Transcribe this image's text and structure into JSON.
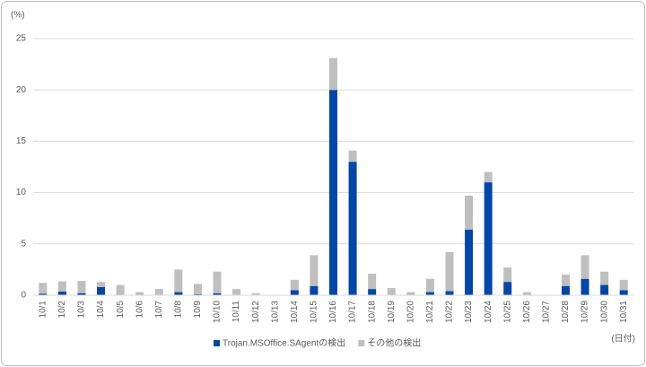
{
  "chart_data": {
    "type": "stacked-bar",
    "y_label": "(%)",
    "x_label": "(日付)",
    "categories": [
      "10/1",
      "10/2",
      "10/3",
      "10/4",
      "10/5",
      "10/6",
      "10/7",
      "10/8",
      "10/9",
      "10/10",
      "10/11",
      "10/12",
      "10/13",
      "10/14",
      "10/15",
      "10/16",
      "10/17",
      "10/18",
      "10/19",
      "10/20",
      "10/21",
      "10/22",
      "10/23",
      "10/24",
      "10/25",
      "10/26",
      "10/27",
      "10/28",
      "10/29",
      "10/30",
      "10/31"
    ],
    "series": [
      {
        "name": "Trojan.MSOffice.SAgentの検出",
        "color": "#0047ab",
        "values": [
          0.15,
          0.35,
          0.2,
          0.8,
          0,
          0,
          0,
          0.3,
          0.1,
          0.2,
          0,
          0,
          0,
          0.5,
          0.9,
          20,
          13,
          0.6,
          0,
          0,
          0.3,
          0.4,
          6.4,
          11,
          1.3,
          0,
          0,
          0.9,
          1.6,
          1.0,
          0.5
        ]
      },
      {
        "name": "その他の検出",
        "color": "#bfbfbf",
        "values": [
          1.05,
          1.0,
          1.2,
          0.5,
          1.0,
          0.3,
          0.6,
          2.2,
          1.0,
          2.1,
          0.6,
          0.2,
          0.05,
          1.0,
          3.0,
          3.1,
          1.1,
          1.5,
          0.7,
          0.3,
          1.3,
          3.8,
          3.3,
          1.0,
          1.4,
          0.3,
          0.05,
          1.1,
          2.3,
          1.3,
          1.0
        ]
      }
    ],
    "ylim": [
      0,
      25
    ],
    "yticks": [
      0,
      5,
      10,
      15,
      20,
      25
    ],
    "grid": true,
    "legend": "bottom"
  }
}
